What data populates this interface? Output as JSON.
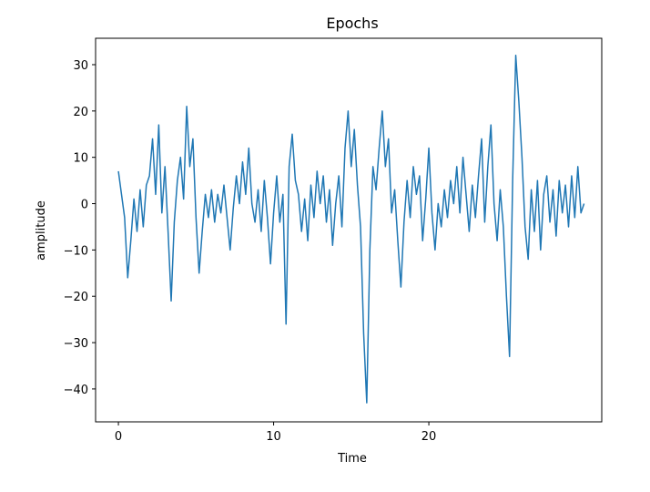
{
  "chart_data": {
    "type": "line",
    "title": "Epochs",
    "xlabel": "Time",
    "ylabel": "amplitude",
    "x": [
      0,
      0.2,
      0.4,
      0.6,
      0.8,
      1,
      1.2,
      1.4,
      1.6,
      1.8,
      2,
      2.2,
      2.4,
      2.6,
      2.8,
      3,
      3.2,
      3.4,
      3.6,
      3.8,
      4,
      4.2,
      4.4,
      4.6,
      4.8,
      5,
      5.2,
      5.4,
      5.6,
      5.8,
      6,
      6.2,
      6.4,
      6.6,
      6.8,
      7,
      7.2,
      7.4,
      7.6,
      7.8,
      8,
      8.2,
      8.4,
      8.6,
      8.8,
      9,
      9.2,
      9.4,
      9.6,
      9.8,
      10,
      10.2,
      10.4,
      10.6,
      10.8,
      11,
      11.2,
      11.4,
      11.6,
      11.8,
      12,
      12.2,
      12.4,
      12.6,
      12.8,
      13,
      13.2,
      13.4,
      13.6,
      13.8,
      14,
      14.2,
      14.4,
      14.6,
      14.8,
      15,
      15.2,
      15.4,
      15.6,
      15.8,
      16,
      16.2,
      16.4,
      16.6,
      16.8,
      17,
      17.2,
      17.4,
      17.6,
      17.8,
      18,
      18.2,
      18.4,
      18.6,
      18.8,
      19,
      19.2,
      19.4,
      19.6,
      19.8,
      20,
      20.2,
      20.4,
      20.6,
      20.8,
      21,
      21.2,
      21.4,
      21.6,
      21.8,
      22,
      22.2,
      22.4,
      22.6,
      22.8,
      23,
      23.2,
      23.4,
      23.6,
      23.8,
      24,
      24.2,
      24.4,
      24.6,
      24.8,
      25,
      25.2,
      25.4,
      25.6,
      25.8,
      26,
      26.2,
      26.4,
      26.6,
      26.8,
      27,
      27.2,
      27.4,
      27.6,
      27.8,
      28,
      28.2,
      28.4,
      28.6,
      28.8,
      29,
      29.2,
      29.4,
      29.6,
      29.8,
      30
    ],
    "series": [
      {
        "color": "#1f77b4",
        "values": [
          7,
          2,
          -3,
          -16,
          -8,
          1,
          -6,
          3,
          -5,
          4,
          6,
          14,
          2,
          17,
          -2,
          8,
          -6,
          -21,
          -4,
          5,
          10,
          1,
          21,
          8,
          14,
          -3,
          -15,
          -6,
          2,
          -3,
          3,
          -4,
          2,
          -2,
          4,
          -3,
          -10,
          -1,
          6,
          0,
          9,
          2,
          12,
          0,
          -4,
          3,
          -6,
          5,
          -3,
          -13,
          -2,
          6,
          -4,
          2,
          -26,
          8,
          15,
          5,
          2,
          -6,
          1,
          -8,
          4,
          -3,
          7,
          0,
          6,
          -4,
          3,
          -9,
          0,
          6,
          -5,
          12,
          20,
          8,
          16,
          4,
          -5,
          -28,
          -43,
          -10,
          8,
          3,
          12,
          20,
          8,
          14,
          -2,
          3,
          -8,
          -18,
          -4,
          5,
          -3,
          8,
          2,
          6,
          -8,
          1,
          12,
          -2,
          -10,
          0,
          -5,
          3,
          -3,
          5,
          0,
          8,
          -2,
          10,
          2,
          -6,
          4,
          -3,
          6,
          14,
          -4,
          8,
          17,
          0,
          -8,
          3,
          -5,
          -20,
          -33,
          5,
          32,
          22,
          10,
          -5,
          -12,
          3,
          -6,
          5,
          -10,
          2,
          6,
          -4,
          3,
          -7,
          5,
          -2,
          4,
          -5,
          6,
          -3,
          8,
          -2,
          0
        ]
      }
    ],
    "xlim": [
      -1.47,
      31.14
    ],
    "ylim": [
      -47.1,
      35.7
    ],
    "xticks": [
      0,
      10,
      20
    ],
    "yticks": [
      {
        "value": -40,
        "label": "−40"
      },
      {
        "value": -30,
        "label": "−30"
      },
      {
        "value": -20,
        "label": "−20"
      },
      {
        "value": -10,
        "label": "−10"
      },
      0,
      10,
      20,
      30
    ]
  }
}
